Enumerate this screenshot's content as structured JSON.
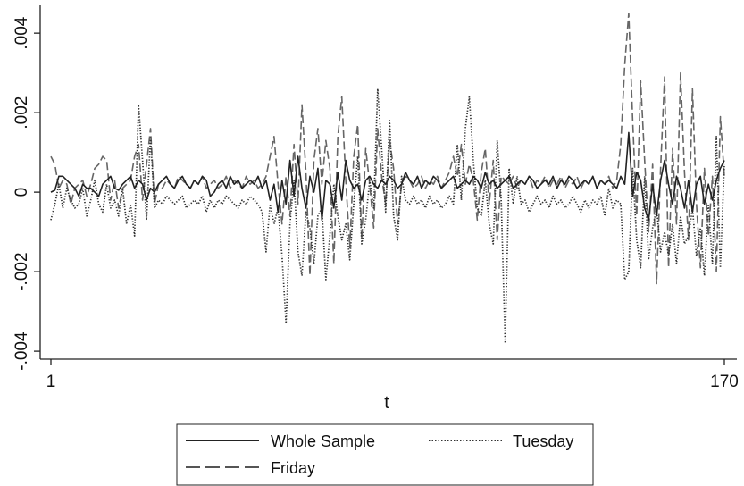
{
  "chart_data": {
    "type": "line",
    "title": "",
    "xlabel": "t",
    "ylabel": "",
    "xlim": [
      1,
      170
    ],
    "ylim": [
      -0.0042,
      0.0047
    ],
    "x_ticks": [
      {
        "value": 1,
        "label": "1"
      },
      {
        "value": 170,
        "label": "170"
      }
    ],
    "y_ticks": [
      {
        "value": -0.004,
        "label": "-.004"
      },
      {
        "value": -0.002,
        "label": "-.002"
      },
      {
        "value": 0,
        "label": "0"
      },
      {
        "value": 0.002,
        "label": ".002"
      },
      {
        "value": 0.004,
        "label": ".004"
      }
    ],
    "grid": false,
    "legend_position": "bottom",
    "series": [
      {
        "name": "Whole Sample",
        "style": "solid",
        "color": "#222222",
        "values": [
          0.0,
          5e-05,
          0.0004,
          0.0004,
          0.0003,
          0.0002,
          0.0001,
          -0.0001,
          0.0002,
          0.0001,
          0.0001,
          0.0,
          -0.0001,
          0.0002,
          0.0003,
          0.0004,
          0.0001,
          5e-05,
          0.0002,
          0.0003,
          0.0004,
          0.0001,
          0.0003,
          0.0002,
          -0.0002,
          0.0001,
          0.0,
          0.0002,
          0.0003,
          0.0004,
          0.0002,
          0.0001,
          0.0003,
          0.0004,
          0.0002,
          0.0001,
          0.0003,
          0.0002,
          0.0004,
          0.0003,
          -0.0001,
          0.0,
          0.0002,
          0.0003,
          0.0001,
          0.0004,
          0.0002,
          0.0003,
          0.0001,
          0.0002,
          0.0003,
          0.0002,
          0.0004,
          0.0001,
          0.0003,
          -0.0002,
          0.0002,
          -0.0005,
          0.0003,
          -0.0003,
          0.0008,
          -0.0001,
          0.0009,
          0.0001,
          -0.0004,
          0.0004,
          0.0,
          0.0006,
          -0.0007,
          0.0003,
          0.0002,
          -0.0004,
          0.0005,
          -0.0002,
          0.0008,
          0.0003,
          0.0001,
          0.0002,
          -0.0002,
          0.0003,
          0.0004,
          0.0002,
          0.0001,
          0.0003,
          0.0002,
          0.0004,
          0.0003,
          0.0001,
          0.0002,
          0.0005,
          0.0003,
          0.0002,
          0.0004,
          0.0001,
          0.0003,
          0.0002,
          0.0004,
          0.0003,
          0.0001,
          0.0002,
          0.0003,
          0.0004,
          0.0001,
          0.0002,
          0.0003,
          0.0002,
          0.0004,
          0.0003,
          0.0001,
          0.0005,
          0.0002,
          0.0003,
          0.0001,
          0.0002,
          0.0003,
          0.0004,
          0.0001,
          0.0002,
          0.0003,
          0.0002,
          0.0004,
          0.0003,
          0.0001,
          0.0002,
          0.0003,
          0.0002,
          0.0004,
          0.0001,
          0.0003,
          0.0002,
          0.0004,
          0.0003,
          0.0001,
          0.0002,
          0.0003,
          0.0002,
          0.0004,
          0.0001,
          0.0003,
          0.0002,
          0.0003,
          0.0002,
          0.0001,
          0.0004,
          0.0002,
          0.0015,
          -0.0001,
          0.0005,
          0.0003,
          -0.0004,
          -0.0007,
          0.0002,
          -0.0006,
          0.0003,
          0.0008,
          0.0002,
          -0.0003,
          0.0004,
          0.0001,
          -0.0004,
          0.0003,
          -0.0005,
          0.0002,
          0.0004,
          -0.0003,
          0.0002,
          -0.0002,
          0.0003,
          0.0006,
          0.0008
        ]
      },
      {
        "name": "Tuesday",
        "style": "dotted",
        "color": "#333333",
        "values": [
          -0.0007,
          -0.0003,
          0.0002,
          -0.0004,
          0.0001,
          -0.0002,
          -0.0004,
          -0.0003,
          0.0001,
          -0.0006,
          -0.0002,
          0.0003,
          -0.0003,
          -0.0005,
          0.0002,
          -0.0004,
          -0.0002,
          -0.0006,
          0.0001,
          -0.0008,
          -0.0003,
          -0.0011,
          0.0022,
          0.0008,
          -0.0007,
          0.0014,
          -0.0004,
          -0.0002,
          -0.0003,
          -0.0001,
          -0.0002,
          -0.0003,
          -0.0002,
          -0.0001,
          -0.0004,
          -0.0003,
          -0.0002,
          -0.0003,
          -0.0001,
          -0.0005,
          -0.0002,
          -0.0004,
          -0.0002,
          -0.0003,
          -0.0001,
          -0.0002,
          -0.0003,
          -0.0004,
          -0.0002,
          -0.0003,
          -0.0001,
          -0.0002,
          -0.0003,
          -0.0005,
          -0.0015,
          -0.0003,
          -0.0008,
          -0.0004,
          -0.0016,
          -0.0033,
          -0.0008,
          0.0003,
          -0.0015,
          -0.0021,
          -0.0005,
          -0.0009,
          -0.0018,
          -0.0006,
          -0.0004,
          -0.0022,
          -0.0011,
          0.0002,
          -0.0006,
          -0.0012,
          -0.0008,
          -0.0017,
          -0.0003,
          0.0009,
          -0.0013,
          -0.0007,
          0.0003,
          -0.0004,
          0.0026,
          0.0011,
          -0.0005,
          0.0018,
          -0.0006,
          -0.0012,
          0.0004,
          -0.0002,
          -0.0003,
          -0.0001,
          -0.0003,
          -0.0002,
          -0.0004,
          -0.0001,
          -0.0003,
          -0.0002,
          -0.0004,
          -0.0003,
          -0.0001,
          -0.0003,
          0.0012,
          -0.0002,
          0.0016,
          0.0024,
          0.0008,
          -0.0004,
          -0.0006,
          0.0003,
          -0.0008,
          -0.0013,
          0.0013,
          -0.0002,
          -0.0038,
          0.0006,
          -0.0003,
          0.0004,
          -0.0003,
          -0.0002,
          -0.0005,
          -0.0003,
          -0.0001,
          -0.0003,
          -0.0002,
          -0.0004,
          -0.0001,
          -0.0003,
          -0.0002,
          -0.0004,
          -0.0003,
          -0.0001,
          -0.0003,
          -0.0005,
          -0.0002,
          -0.0004,
          -0.0002,
          -0.0003,
          -0.0001,
          -0.0006,
          0.0001,
          -0.0004,
          -0.0002,
          -0.0003,
          -0.0022,
          -0.002,
          0.0006,
          -0.0012,
          -0.0019,
          0.0004,
          -0.0017,
          -0.0009,
          -0.0004,
          -0.0015,
          -0.001,
          -0.0016,
          -0.0008,
          -0.0018,
          -0.0006,
          -0.0013,
          -0.0011,
          -0.0004,
          -0.0016,
          -0.0009,
          -0.0021,
          -0.0003,
          -0.0018,
          0.0014,
          -0.0019,
          0.0007
        ]
      },
      {
        "name": "Friday",
        "style": "dashed",
        "color": "#666666",
        "values": [
          0.0009,
          0.0007,
          0.0001,
          0.0003,
          0.0002,
          -0.0003,
          0.0001,
          0.0002,
          0.0003,
          -0.0001,
          0.0002,
          0.0006,
          0.0007,
          0.0009,
          0.0008,
          -0.0002,
          0.0003,
          -0.0004,
          0.0001,
          0.0002,
          0.0003,
          0.0009,
          0.0012,
          -0.0002,
          0.0007,
          0.0016,
          -0.0003,
          0.0002,
          0.0001,
          0.0003,
          0.0002,
          0.0001,
          0.0004,
          0.0003,
          0.0002,
          0.0001,
          0.0003,
          0.0002,
          0.0004,
          0.0001,
          0.0002,
          0.0003,
          0.0001,
          0.0002,
          0.0004,
          0.0001,
          0.0003,
          0.0002,
          0.0001,
          0.0004,
          0.0002,
          0.0003,
          0.0001,
          0.0002,
          0.0004,
          0.0009,
          0.0014,
          0.0002,
          -0.0008,
          0.0004,
          -0.0006,
          0.0012,
          -0.0003,
          0.0022,
          0.0005,
          -0.0021,
          0.0008,
          0.0016,
          0.0002,
          0.0013,
          0.0006,
          -0.0018,
          0.0014,
          0.0024,
          0.0003,
          -0.0014,
          0.0009,
          0.0017,
          -0.0012,
          0.0011,
          0.0002,
          -0.0009,
          0.0016,
          0.0004,
          -0.0003,
          0.0013,
          0.0006,
          -0.0008,
          0.0002,
          0.0004,
          0.0003,
          0.0001,
          0.0002,
          0.0004,
          0.0001,
          0.0003,
          0.0002,
          0.0004,
          0.0001,
          0.0003,
          0.0005,
          0.0009,
          0.0004,
          0.0012,
          0.0002,
          0.0007,
          0.0003,
          -0.0007,
          0.0005,
          0.0011,
          -0.0003,
          0.0008,
          -0.0012,
          0.0004,
          0.0003,
          0.0002,
          0.0004,
          0.0001,
          0.0003,
          0.0002,
          0.0004,
          0.0001,
          0.0003,
          0.0002,
          0.0004,
          0.0001,
          0.0003,
          0.0002,
          0.0004,
          0.0001,
          0.0003,
          0.0002,
          0.0004,
          0.0001,
          0.0003,
          0.0002,
          0.0004,
          0.0001,
          0.0003,
          0.0002,
          0.0004,
          0.0001,
          0.0003,
          0.0012,
          0.0032,
          0.0045,
          0.0018,
          -0.0006,
          0.0028,
          0.0008,
          -0.001,
          0.0007,
          -0.0023,
          0.0006,
          0.0029,
          -0.0019,
          0.0011,
          -0.0008,
          0.003,
          0.0005,
          -0.0012,
          0.0026,
          -0.0003,
          -0.0019,
          0.0006,
          -0.0011,
          0.0004,
          -0.002,
          0.0019,
          0.0004
        ]
      }
    ]
  }
}
